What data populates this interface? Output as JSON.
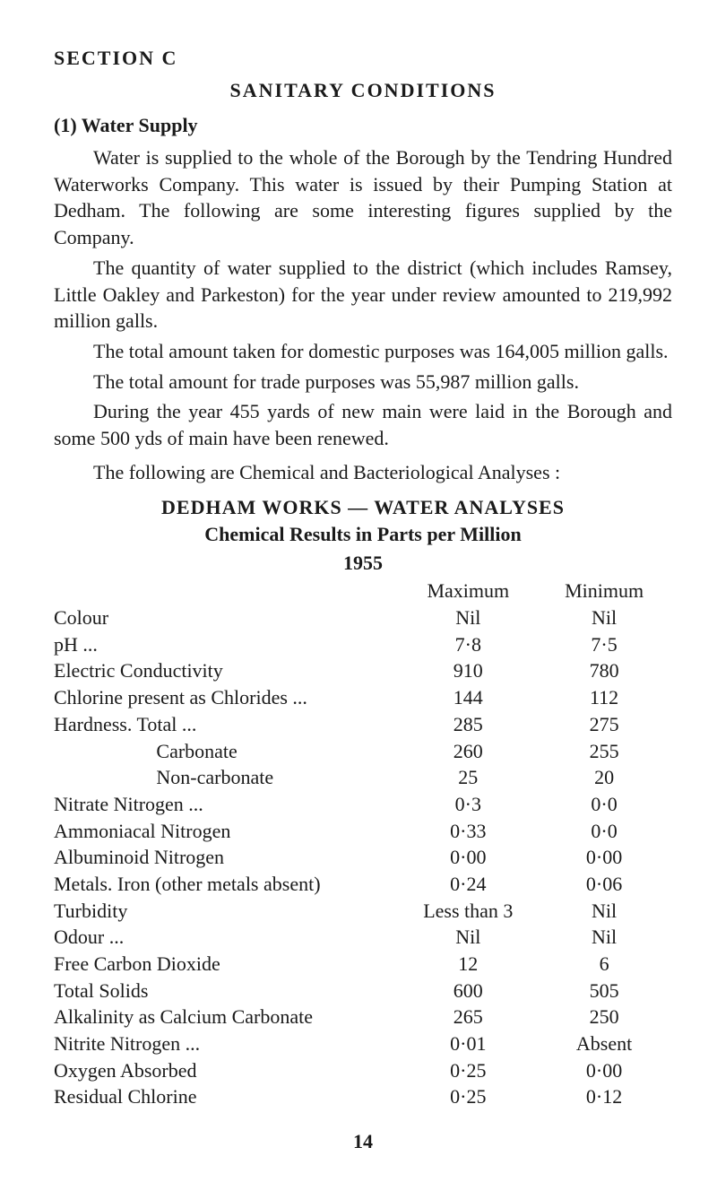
{
  "section_label": "SECTION C",
  "title": "SANITARY CONDITIONS",
  "subhead": "(1) Water Supply",
  "paragraphs": {
    "p1": "Water is supplied to the whole of the Borough by the Tendring Hundred Waterworks Company. This water is issued by their Pumping Station at Dedham. The following are some interesting figures supplied by the Company.",
    "p2": "The quantity of water supplied to the district (which includes Ramsey, Little Oakley and Parkeston) for the year under review amounted to 219,992 million galls.",
    "p3": "The total amount taken for domestic purposes was 164,005 million galls.",
    "p4": "The total amount for trade purposes was 55,987 million galls.",
    "p5": "During the year 455 yards of new main were laid in the Borough and some 500 yds of main have been renewed.",
    "p6": "The following are Chemical and Bacteriological Analyses :"
  },
  "works_line": "DEDHAM WORKS — WATER ANALYSES",
  "chem_line": "Chemical Results in Parts per Million",
  "year": "1955",
  "headers": {
    "max": "Maximum",
    "min": "Minimum"
  },
  "rows": [
    {
      "label": "Colour",
      "max": "Nil",
      "min": "Nil"
    },
    {
      "label": "pH   ...",
      "max": "7·8",
      "min": "7·5"
    },
    {
      "label": "Electric Conductivity",
      "max": "910",
      "min": "780"
    },
    {
      "label": "Chlorine present as Chlorides  ...",
      "max": "144",
      "min": "112"
    },
    {
      "label": "Hardness.  Total   ...",
      "max": "285",
      "min": "275"
    },
    {
      "label": "Carbonate",
      "sub": true,
      "max": "260",
      "min": "255"
    },
    {
      "label": "Non-carbonate",
      "sub": true,
      "max": "25",
      "min": "20"
    },
    {
      "label": "Nitrate Nitrogen   ...",
      "max": "0·3",
      "min": "0·0"
    },
    {
      "label": "Ammoniacal Nitrogen",
      "max": "0·33",
      "min": "0·0"
    },
    {
      "label": "Albuminoid Nitrogen",
      "max": "0·00",
      "min": "0·00"
    },
    {
      "label": "Metals.  Iron (other metals absent)",
      "max": "0·24",
      "min": "0·06"
    },
    {
      "label": "Turbidity",
      "max": "Less than 3",
      "min": "Nil"
    },
    {
      "label": "Odour ...",
      "max": "Nil",
      "min": "Nil"
    },
    {
      "label": "Free Carbon Dioxide",
      "max": "12",
      "min": "6"
    },
    {
      "label": "Total Solids",
      "max": "600",
      "min": "505"
    },
    {
      "label": "Alkalinity as Calcium Carbonate",
      "max": "265",
      "min": "250"
    },
    {
      "label": "Nitrite Nitrogen   ...",
      "max": "0·01",
      "min": "Absent"
    },
    {
      "label": "Oxygen Absorbed",
      "max": "0·25",
      "min": "0·00"
    },
    {
      "label": "Residual Chlorine",
      "max": "0·25",
      "min": "0·12"
    }
  ],
  "page_number": "14"
}
